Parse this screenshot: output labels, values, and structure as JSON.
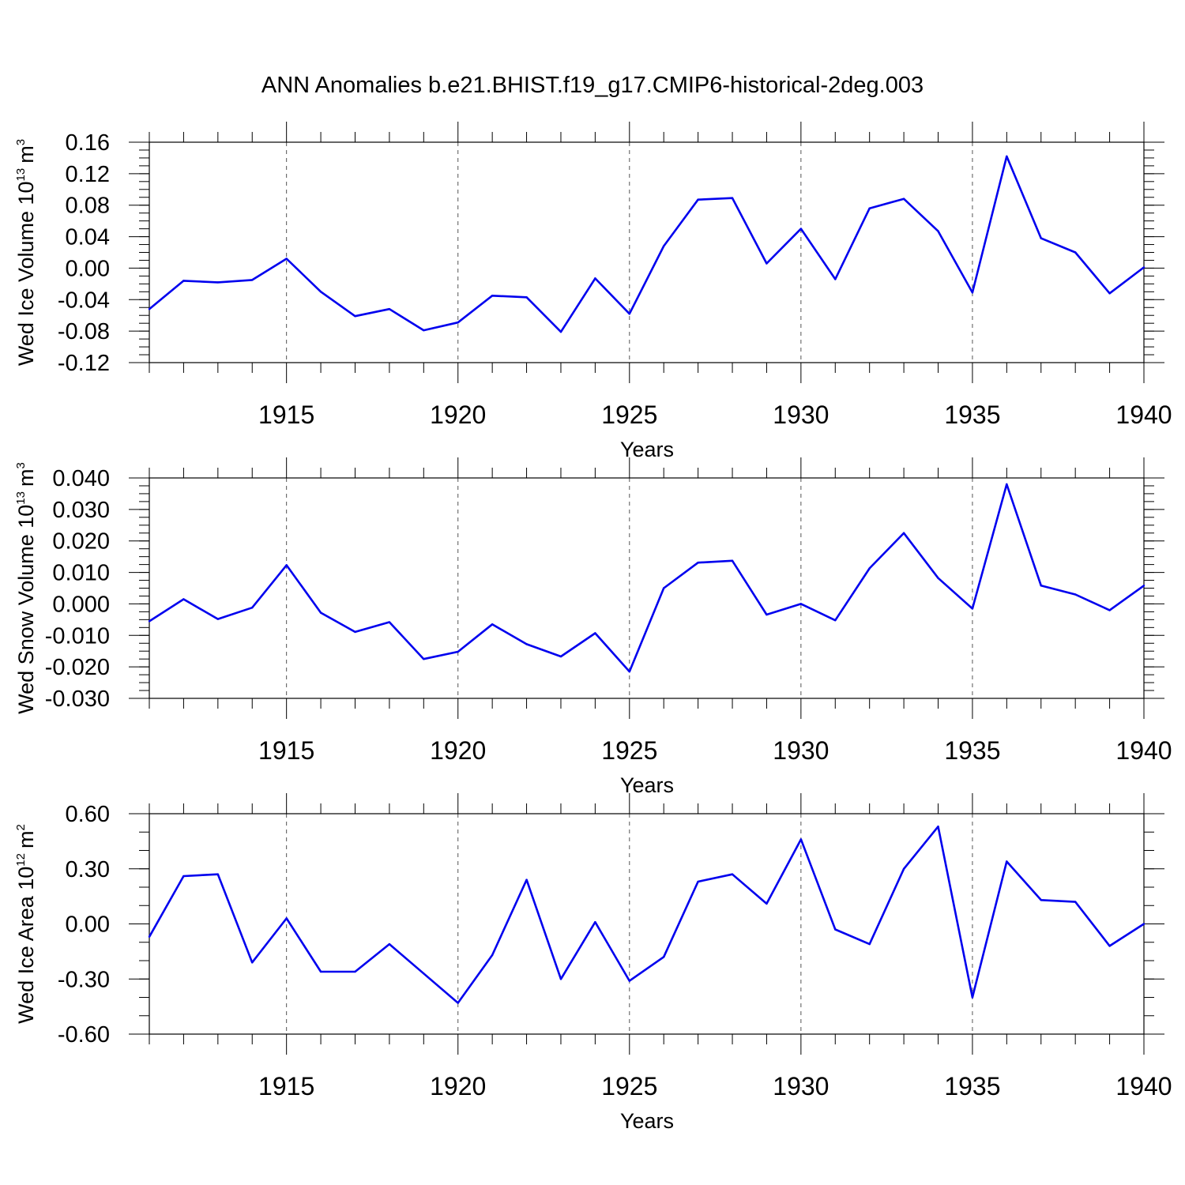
{
  "figure": {
    "title": "ANN Anomalies b.e21.BHIST.f19_g17.CMIP6-historical-2deg.003"
  },
  "chart_data": [
    {
      "type": "line",
      "ylabel_main": "Wed Ice Volume 10",
      "ylabel_exp": "13",
      "ylabel_unit": "m",
      "ylabel_unit_exp": "3",
      "xlabel": "Years",
      "xlim": [
        1911,
        1940
      ],
      "ylim": [
        -0.12,
        0.16
      ],
      "yticks": [
        -0.12,
        -0.08,
        -0.04,
        0.0,
        0.04,
        0.08,
        0.12,
        0.16
      ],
      "ytick_labels": [
        "-0.12",
        "-0.08",
        "-0.04",
        "0.00",
        "0.04",
        "0.08",
        "0.12",
        "0.16"
      ],
      "yminor_step": 0.01,
      "xticks": [
        1915,
        1920,
        1925,
        1930,
        1935,
        1940
      ],
      "xtick_labels": [
        "1915",
        "1920",
        "1925",
        "1930",
        "1935",
        "1940"
      ],
      "x": [
        1911,
        1912,
        1913,
        1914,
        1915,
        1916,
        1917,
        1918,
        1919,
        1920,
        1921,
        1922,
        1923,
        1924,
        1925,
        1926,
        1927,
        1928,
        1929,
        1930,
        1931,
        1932,
        1933,
        1934,
        1935,
        1936,
        1937,
        1938,
        1939,
        1940
      ],
      "values": [
        -0.052,
        -0.016,
        -0.018,
        -0.015,
        0.012,
        -0.03,
        -0.061,
        -0.052,
        -0.079,
        -0.069,
        -0.035,
        -0.037,
        -0.081,
        -0.013,
        -0.058,
        0.028,
        0.087,
        0.089,
        0.006,
        0.05,
        -0.014,
        0.076,
        0.088,
        0.047,
        -0.031,
        0.142,
        0.038,
        0.02,
        -0.032,
        0.001
      ],
      "grid_x": true,
      "color": "#0000ee"
    },
    {
      "type": "line",
      "ylabel_main": "Wed Snow Volume 10",
      "ylabel_exp": "13",
      "ylabel_unit": "m",
      "ylabel_unit_exp": "3",
      "xlabel": "Years",
      "xlim": [
        1911,
        1940
      ],
      "ylim": [
        -0.03,
        0.04
      ],
      "yticks": [
        -0.03,
        -0.02,
        -0.01,
        0.0,
        0.01,
        0.02,
        0.03,
        0.04
      ],
      "ytick_labels": [
        "-0.030",
        "-0.020",
        "-0.010",
        "0.000",
        "0.010",
        "0.020",
        "0.030",
        "0.040"
      ],
      "yminor_step": 0.0025,
      "xticks": [
        1915,
        1920,
        1925,
        1930,
        1935,
        1940
      ],
      "xtick_labels": [
        "1915",
        "1920",
        "1925",
        "1930",
        "1935",
        "1940"
      ],
      "x": [
        1911,
        1912,
        1913,
        1914,
        1915,
        1916,
        1917,
        1918,
        1919,
        1920,
        1921,
        1922,
        1923,
        1924,
        1925,
        1926,
        1927,
        1928,
        1929,
        1930,
        1931,
        1932,
        1933,
        1934,
        1935,
        1936,
        1937,
        1938,
        1939,
        1940
      ],
      "values": [
        -0.0055,
        0.0015,
        -0.0048,
        -0.0012,
        0.0123,
        -0.0028,
        -0.0089,
        -0.0058,
        -0.0175,
        -0.0152,
        -0.0065,
        -0.0128,
        -0.0167,
        -0.0093,
        -0.0215,
        0.005,
        0.0131,
        0.0137,
        -0.0034,
        0.0,
        -0.0052,
        0.0113,
        0.0225,
        0.0082,
        -0.0015,
        0.038,
        0.0058,
        0.003,
        -0.002,
        0.0058
      ],
      "grid_x": true,
      "color": "#0000ee"
    },
    {
      "type": "line",
      "ylabel_main": "Wed Ice Area 10",
      "ylabel_exp": "12",
      "ylabel_unit": "m",
      "ylabel_unit_exp": "2",
      "xlabel": "Years",
      "xlim": [
        1911,
        1940
      ],
      "ylim": [
        -0.6,
        0.6
      ],
      "yticks": [
        -0.6,
        -0.3,
        0.0,
        0.3,
        0.6
      ],
      "ytick_labels": [
        "-0.60",
        "-0.30",
        "0.00",
        "0.30",
        "0.60"
      ],
      "yminor_step": 0.1,
      "xticks": [
        1915,
        1920,
        1925,
        1930,
        1935,
        1940
      ],
      "xtick_labels": [
        "1915",
        "1920",
        "1925",
        "1930",
        "1935",
        "1940"
      ],
      "x": [
        1911,
        1912,
        1913,
        1914,
        1915,
        1916,
        1917,
        1918,
        1919,
        1920,
        1921,
        1922,
        1923,
        1924,
        1925,
        1926,
        1927,
        1928,
        1929,
        1930,
        1931,
        1932,
        1933,
        1934,
        1935,
        1936,
        1937,
        1938,
        1939,
        1940
      ],
      "values": [
        -0.07,
        0.26,
        0.27,
        -0.21,
        0.03,
        -0.26,
        -0.26,
        -0.11,
        -0.27,
        -0.43,
        -0.17,
        0.24,
        -0.3,
        0.01,
        -0.31,
        -0.18,
        0.23,
        0.27,
        0.11,
        0.46,
        -0.03,
        -0.11,
        0.3,
        0.53,
        -0.4,
        0.34,
        0.13,
        0.12,
        -0.12,
        0.0
      ],
      "grid_x": true,
      "color": "#0000ee"
    }
  ]
}
